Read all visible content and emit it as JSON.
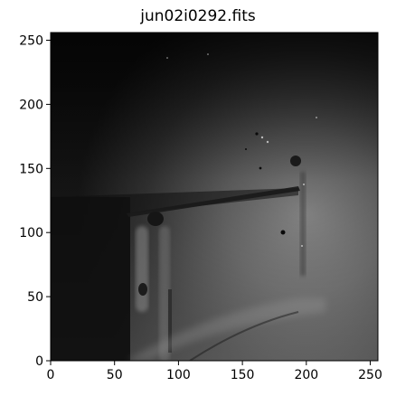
{
  "figure": {
    "title": "jun02i0292.fits"
  },
  "image_axes": {
    "x_ticks": [
      "0",
      "50",
      "100",
      "150",
      "200",
      "250"
    ],
    "y_ticks": [
      "0",
      "50",
      "100",
      "150",
      "200",
      "250"
    ],
    "x_range": [
      0,
      256
    ],
    "y_range": [
      0,
      256
    ],
    "x_tick_values": [
      0,
      50,
      100,
      150,
      200,
      250
    ],
    "y_tick_values": [
      0,
      50,
      100,
      150,
      200,
      250
    ],
    "colormap": "grayscale"
  }
}
